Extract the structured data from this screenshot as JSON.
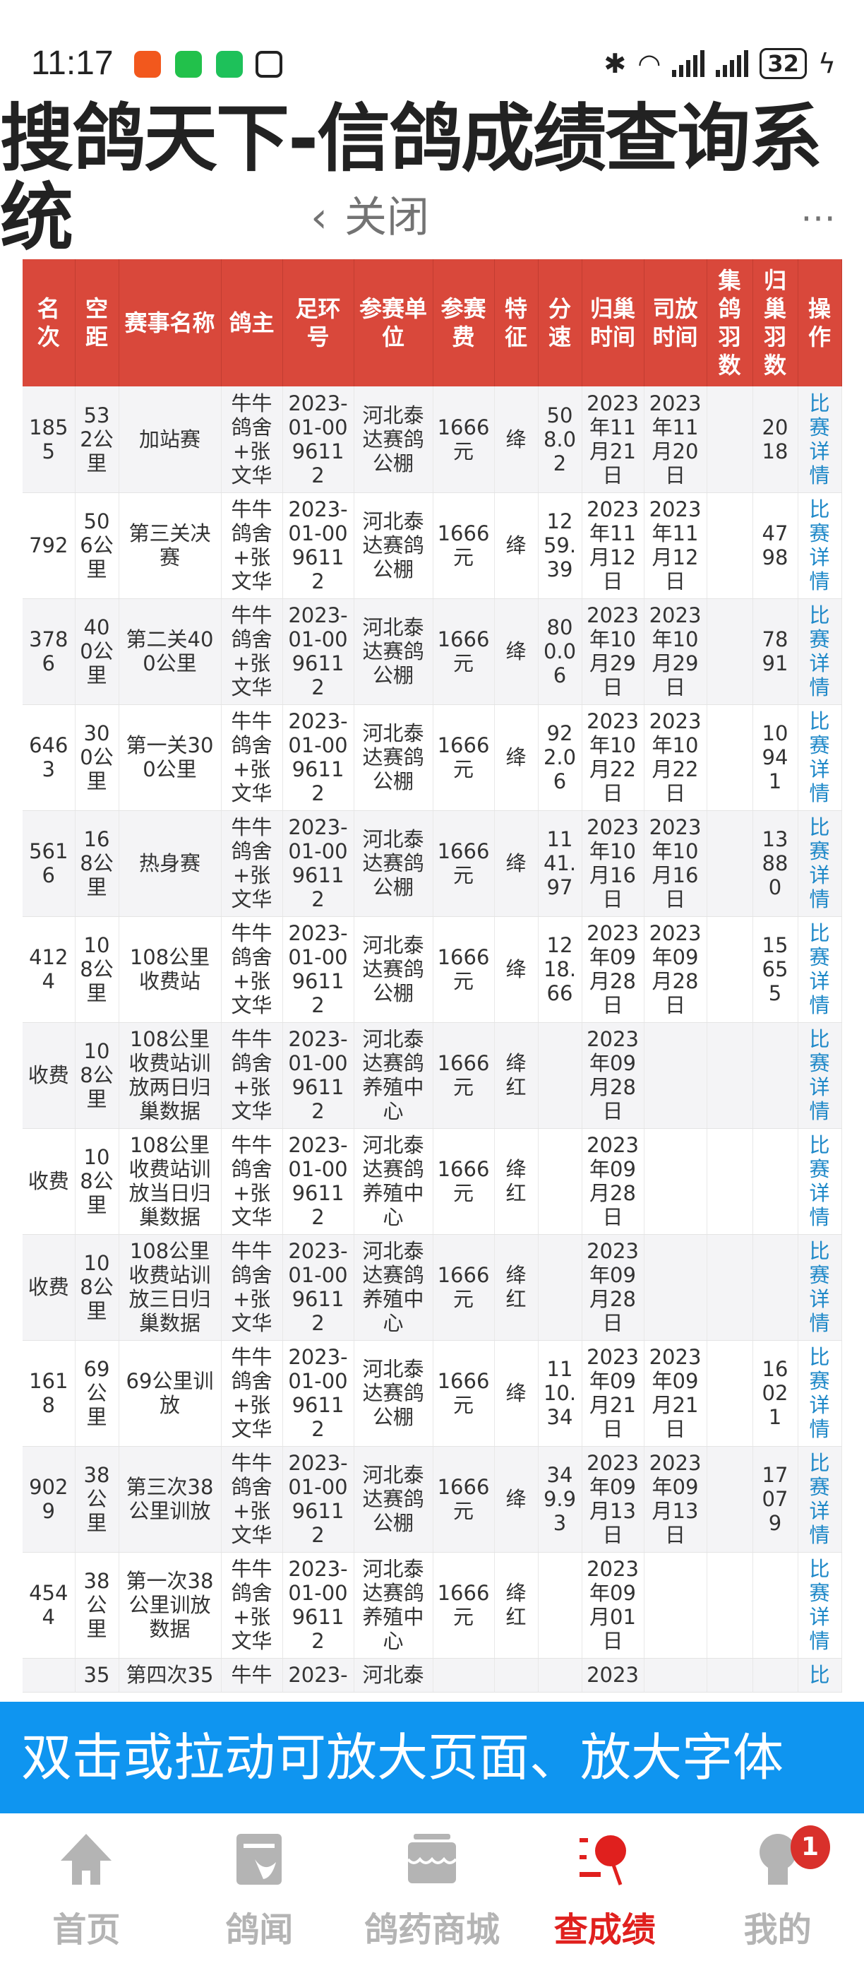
{
  "status_bar": {
    "time": "11:17",
    "battery": "32"
  },
  "page": {
    "title": "搜鸽天下-信鸽成绩查询系统",
    "close_overlay": {
      "back_icon": "‹",
      "label": "关闭"
    }
  },
  "colors": {
    "header": "#d9483b",
    "banner": "#0f95f0",
    "active": "#e0201e",
    "link": "#1e88c8"
  },
  "table": {
    "headers": [
      "名次",
      "空距",
      "赛事名称",
      "鸽主",
      "足环号",
      "参赛单位",
      "参赛费",
      "特征",
      "分速",
      "归巢时间",
      "司放时间",
      "集鸽羽数",
      "归巢羽数",
      "操作"
    ],
    "rows": [
      [
        "1855",
        "532公里",
        "加站赛",
        "牛牛鸽舍+张文华",
        "2023-01-0096112",
        "河北泰达赛鸽公棚",
        "1666元",
        "绛",
        "508.02",
        "2023年11月21日",
        "2023年11月20日",
        "",
        "2018",
        "比赛详情"
      ],
      [
        "792",
        "506公里",
        "第三关决赛",
        "牛牛鸽舍+张文华",
        "2023-01-0096112",
        "河北泰达赛鸽公棚",
        "1666元",
        "绛",
        "1259.39",
        "2023年11月12日",
        "2023年11月12日",
        "",
        "4798",
        "比赛详情"
      ],
      [
        "3786",
        "400公里",
        "第二关400公里",
        "牛牛鸽舍+张文华",
        "2023-01-0096112",
        "河北泰达赛鸽公棚",
        "1666元",
        "绛",
        "800.06",
        "2023年10月29日",
        "2023年10月29日",
        "",
        "7891",
        "比赛详情"
      ],
      [
        "6463",
        "300公里",
        "第一关300公里",
        "牛牛鸽舍+张文华",
        "2023-01-0096112",
        "河北泰达赛鸽公棚",
        "1666元",
        "绛",
        "922.06",
        "2023年10月22日",
        "2023年10月22日",
        "",
        "10941",
        "比赛详情"
      ],
      [
        "5616",
        "168公里",
        "热身赛",
        "牛牛鸽舍+张文华",
        "2023-01-0096112",
        "河北泰达赛鸽公棚",
        "1666元",
        "绛",
        "1141.97",
        "2023年10月16日",
        "2023年10月16日",
        "",
        "13880",
        "比赛详情"
      ],
      [
        "4124",
        "108公里",
        "108公里收费站",
        "牛牛鸽舍+张文华",
        "2023-01-0096112",
        "河北泰达赛鸽公棚",
        "1666元",
        "绛",
        "1218.66",
        "2023年09月28日",
        "2023年09月28日",
        "",
        "15655",
        "比赛详情"
      ],
      [
        "收费",
        "108公里",
        "108公里收费站训放两日归巢数据",
        "牛牛鸽舍+张文华",
        "2023-01-0096112",
        "河北泰达赛鸽养殖中心",
        "1666元",
        "绛红",
        "",
        "2023年09月28日",
        "",
        "",
        "",
        "比赛详情"
      ],
      [
        "收费",
        "108公里",
        "108公里收费站训放当日归巢数据",
        "牛牛鸽舍+张文华",
        "2023-01-0096112",
        "河北泰达赛鸽养殖中心",
        "1666元",
        "绛红",
        "",
        "2023年09月28日",
        "",
        "",
        "",
        "比赛详情"
      ],
      [
        "收费",
        "108公里",
        "108公里收费站训放三日归巢数据",
        "牛牛鸽舍+张文华",
        "2023-01-0096112",
        "河北泰达赛鸽养殖中心",
        "1666元",
        "绛红",
        "",
        "2023年09月28日",
        "",
        "",
        "",
        "比赛详情"
      ],
      [
        "1618",
        "69公里",
        "69公里训放",
        "牛牛鸽舍+张文华",
        "2023-01-0096112",
        "河北泰达赛鸽公棚",
        "1666元",
        "绛",
        "1110.34",
        "2023年09月21日",
        "2023年09月21日",
        "",
        "16021",
        "比赛详情"
      ],
      [
        "9029",
        "38公里",
        "第三次38公里训放",
        "牛牛鸽舍+张文华",
        "2023-01-0096112",
        "河北泰达赛鸽公棚",
        "1666元",
        "绛",
        "349.93",
        "2023年09月13日",
        "2023年09月13日",
        "",
        "17079",
        "比赛详情"
      ],
      [
        "4544",
        "38公里",
        "第一次38公里训放数据",
        "牛牛鸽舍+张文华",
        "2023-01-0096112",
        "河北泰达赛鸽养殖中心",
        "1666元",
        "绛红",
        "",
        "2023年09月01日",
        "",
        "",
        "",
        "比赛详情"
      ],
      [
        "",
        "35",
        "第四次35",
        "牛牛",
        "2023-",
        "河北泰",
        "",
        "",
        "",
        "2023",
        "",
        "",
        "",
        "比"
      ]
    ]
  },
  "banner": {
    "text": "双击或拉动可放大页面、放大字体"
  },
  "nav": {
    "items": [
      {
        "label": "首页",
        "icon": "home-icon"
      },
      {
        "label": "鸽闻",
        "icon": "news-icon"
      },
      {
        "label": "鸽药商城",
        "icon": "store-icon"
      },
      {
        "label": "查成绩",
        "icon": "search-results-icon",
        "active": true
      },
      {
        "label": "我的",
        "icon": "profile-icon",
        "badge": "1"
      }
    ]
  }
}
